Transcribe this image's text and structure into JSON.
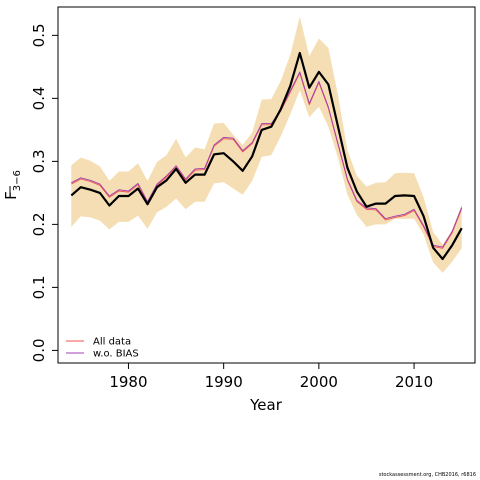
{
  "chart_data": {
    "type": "line",
    "xlabel": "Year",
    "ylabel": {
      "base": "F",
      "subscript": "3−6"
    },
    "xlim": [
      1972.6,
      2016.4
    ],
    "ylim": [
      -0.02,
      0.545
    ],
    "xticks": [
      1980,
      1990,
      2000,
      2010
    ],
    "yticks": [
      0.0,
      0.1,
      0.2,
      0.3,
      0.4,
      0.5
    ],
    "ytick_labels": [
      "0.0",
      "0.1",
      "0.2",
      "0.3",
      "0.4",
      "0.5"
    ],
    "x": [
      1974,
      1975,
      1976,
      1977,
      1978,
      1979,
      1980,
      1981,
      1982,
      1983,
      1984,
      1985,
      1986,
      1987,
      1988,
      1989,
      1990,
      1991,
      1992,
      1993,
      1994,
      1995,
      1996,
      1997,
      1998,
      1999,
      2000,
      2001,
      2002,
      2003,
      2004,
      2005,
      2006,
      2007,
      2008,
      2009,
      2010,
      2011,
      2012,
      2013,
      2014,
      2015
    ],
    "band": {
      "color": "#f5deb3",
      "lower": [
        0.196,
        0.213,
        0.211,
        0.206,
        0.192,
        0.204,
        0.204,
        0.214,
        0.193,
        0.219,
        0.228,
        0.241,
        0.224,
        0.236,
        0.236,
        0.265,
        0.267,
        0.257,
        0.247,
        0.269,
        0.307,
        0.31,
        0.34,
        0.375,
        0.413,
        0.37,
        0.387,
        0.355,
        0.306,
        0.247,
        0.215,
        0.196,
        0.2,
        0.2,
        0.209,
        0.209,
        0.209,
        0.184,
        0.14,
        0.123,
        0.141,
        0.162
      ],
      "upper": [
        0.294,
        0.306,
        0.301,
        0.292,
        0.269,
        0.284,
        0.284,
        0.297,
        0.269,
        0.299,
        0.31,
        0.336,
        0.306,
        0.322,
        0.319,
        0.36,
        0.361,
        0.342,
        0.326,
        0.346,
        0.398,
        0.399,
        0.428,
        0.469,
        0.53,
        0.467,
        0.495,
        0.48,
        0.406,
        0.318,
        0.277,
        0.26,
        0.266,
        0.267,
        0.281,
        0.282,
        0.281,
        0.243,
        0.188,
        0.168,
        0.191,
        0.232
      ]
    },
    "series": [
      {
        "name": "",
        "color": "#000000",
        "width": 2.2,
        "values": [
          0.246,
          0.259,
          0.255,
          0.25,
          0.23,
          0.245,
          0.245,
          0.257,
          0.232,
          0.259,
          0.27,
          0.288,
          0.266,
          0.279,
          0.279,
          0.311,
          0.313,
          0.3,
          0.285,
          0.308,
          0.35,
          0.355,
          0.383,
          0.42,
          0.472,
          0.417,
          0.442,
          0.422,
          0.356,
          0.29,
          0.252,
          0.228,
          0.233,
          0.233,
          0.245,
          0.246,
          0.245,
          0.213,
          0.163,
          0.145,
          0.167,
          0.194
        ]
      },
      {
        "name": "All data",
        "color": "#f0524c",
        "width": 0.9,
        "values": [
          0.264,
          0.272,
          0.268,
          0.262,
          0.243,
          0.253,
          0.251,
          0.263,
          0.234,
          0.262,
          0.275,
          0.291,
          0.27,
          0.286,
          0.287,
          0.324,
          0.336,
          0.335,
          0.315,
          0.328,
          0.358,
          0.358,
          0.38,
          0.41,
          0.44,
          0.39,
          0.425,
          0.384,
          0.327,
          0.27,
          0.236,
          0.224,
          0.223,
          0.207,
          0.211,
          0.214,
          0.222,
          0.196,
          0.165,
          0.162,
          0.187,
          0.225
        ]
      },
      {
        "name": "w.o. BIAS",
        "color": "#a040b0",
        "width": 0.9,
        "values": [
          0.266,
          0.274,
          0.27,
          0.264,
          0.245,
          0.255,
          0.253,
          0.265,
          0.236,
          0.264,
          0.277,
          0.293,
          0.272,
          0.288,
          0.289,
          0.326,
          0.338,
          0.337,
          0.317,
          0.33,
          0.36,
          0.36,
          0.382,
          0.412,
          0.442,
          0.392,
          0.427,
          0.386,
          0.329,
          0.272,
          0.238,
          0.226,
          0.225,
          0.209,
          0.213,
          0.216,
          0.224,
          0.198,
          0.167,
          0.164,
          0.189,
          0.227
        ]
      }
    ],
    "legend": {
      "position": "bottom-left",
      "entries": [
        "All data",
        "w.o. BIAS"
      ]
    },
    "grid": false
  },
  "footer": "stockassessment.org, CHB2016, r6816"
}
